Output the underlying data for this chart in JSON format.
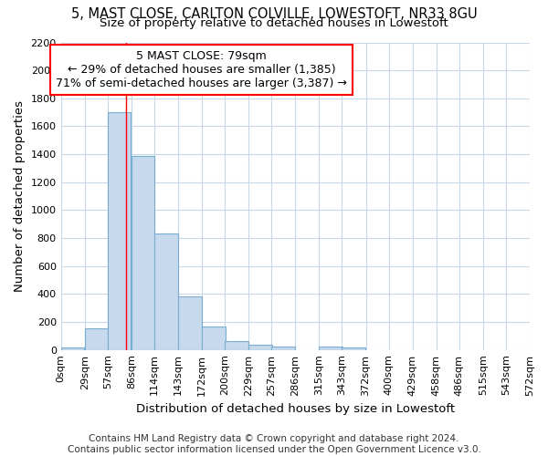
{
  "title1": "5, MAST CLOSE, CARLTON COLVILLE, LOWESTOFT, NR33 8GU",
  "title2": "Size of property relative to detached houses in Lowestoft",
  "xlabel": "Distribution of detached houses by size in Lowestoft",
  "ylabel": "Number of detached properties",
  "bin_labels": [
    "0sqm",
    "29sqm",
    "57sqm",
    "86sqm",
    "114sqm",
    "143sqm",
    "172sqm",
    "200sqm",
    "229sqm",
    "257sqm",
    "286sqm",
    "315sqm",
    "343sqm",
    "372sqm",
    "400sqm",
    "429sqm",
    "458sqm",
    "486sqm",
    "515sqm",
    "543sqm",
    "572sqm"
  ],
  "bar_values": [
    15,
    155,
    1700,
    1390,
    835,
    385,
    165,
    65,
    35,
    25,
    0,
    25,
    15,
    0,
    0,
    0,
    0,
    0,
    0,
    0
  ],
  "bar_color": "#c6d9ed",
  "bar_edge_color": "#7aaed0",
  "vline_x": 79,
  "annotation_line1": "5 MAST CLOSE: 79sqm",
  "annotation_line2": "← 29% of detached houses are smaller (1,385)",
  "annotation_line3": "71% of semi-detached houses are larger (3,387) →",
  "ylim": [
    0,
    2200
  ],
  "yticks": [
    0,
    200,
    400,
    600,
    800,
    1000,
    1200,
    1400,
    1600,
    1800,
    2000,
    2200
  ],
  "footer_text": "Contains HM Land Registry data © Crown copyright and database right 2024.\nContains public sector information licensed under the Open Government Licence v3.0.",
  "background_color": "#ffffff",
  "plot_bg_color": "#ffffff",
  "grid_color": "#c8d8e8",
  "title1_fontsize": 10.5,
  "title2_fontsize": 9.5,
  "axis_label_fontsize": 9.5,
  "tick_fontsize": 8,
  "annotation_fontsize": 9,
  "footer_fontsize": 7.5,
  "bin_starts": [
    0,
    29,
    57,
    86,
    114,
    143,
    172,
    200,
    229,
    257,
    286,
    315,
    343,
    372,
    400,
    429,
    458,
    486,
    515,
    543
  ],
  "bin_width": 28.5,
  "xlim_max": 572
}
